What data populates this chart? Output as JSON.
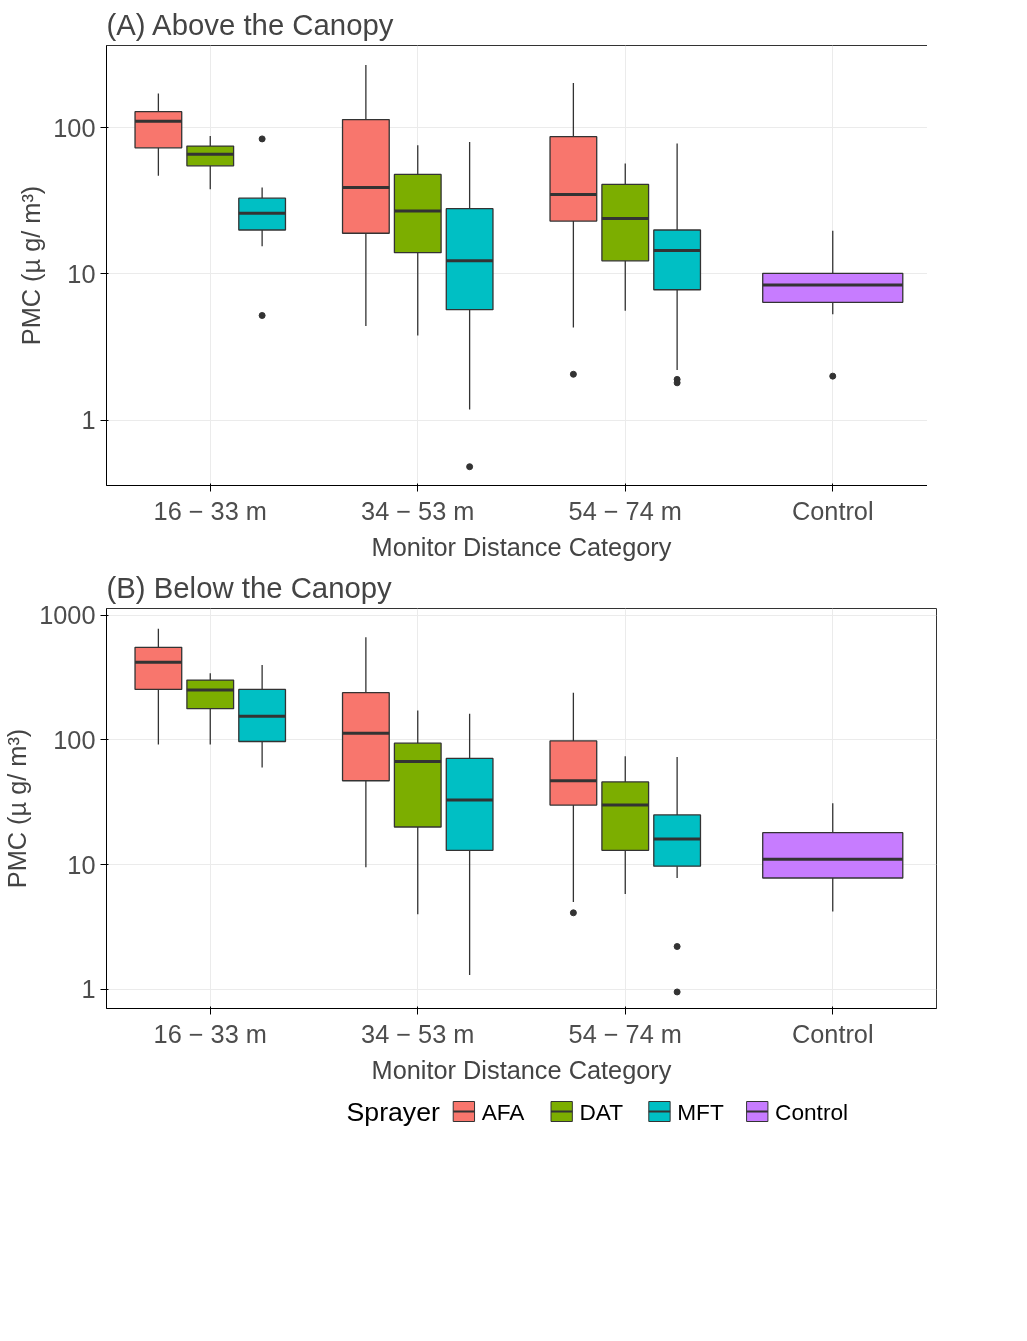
{
  "chart_data": [
    {
      "type": "box",
      "title": "(A) Above the Canopy",
      "xlabel": "Monitor Distance Category",
      "ylabel": "PMC (µ g/ m³)",
      "categories": [
        "16 − 33 m",
        "34 − 53 m",
        "54 − 74 m",
        "Control"
      ],
      "log": true,
      "ylim": [
        0.357,
        366
      ],
      "yticks": [
        1,
        10,
        100
      ],
      "grid": true,
      "series": [
        {
          "color": "#f8766d",
          "boxes": [
            {
              "low": 47,
              "q1": 73,
              "median": 111,
              "q3": 129,
              "high": 172
            },
            {
              "low": 4.4,
              "q1": 19,
              "median": 39,
              "q3": 114,
              "high": 269
            },
            {
              "low": 4.3,
              "q1": 23,
              "median": 35,
              "q3": 87,
              "high": 203,
              "outliers": [
                2.06
              ]
            },
            null
          ]
        },
        {
          "color": "#7cae00",
          "boxes": [
            {
              "low": 38,
              "q1": 55,
              "median": 66,
              "q3": 75,
              "high": 88
            },
            {
              "low": 3.8,
              "q1": 14,
              "median": 27,
              "q3": 48,
              "high": 76
            },
            {
              "low": 5.6,
              "q1": 12.3,
              "median": 24,
              "q3": 41,
              "high": 57
            },
            null
          ]
        },
        {
          "color": "#00bfc4",
          "boxes": [
            {
              "low": 15.5,
              "q1": 20,
              "median": 26,
              "q3": 33,
              "high": 39,
              "outliers": [
                84,
                5.2
              ]
            },
            {
              "low": 1.18,
              "q1": 5.7,
              "median": 12.3,
              "q3": 28,
              "high": 80,
              "outliers": [
                0.48
              ]
            },
            {
              "low": 2.2,
              "q1": 7.8,
              "median": 14.5,
              "q3": 20,
              "high": 78,
              "outliers": [
                1.9,
                1.8
              ]
            },
            null
          ]
        },
        {
          "color": "#c77cff",
          "boxes": [
            null,
            null,
            null,
            {
              "low": 5.3,
              "q1": 6.4,
              "median": 8.4,
              "q3": 10.1,
              "high": 19.8,
              "outliers": [
                2.0
              ]
            }
          ]
        }
      ]
    },
    {
      "type": "box",
      "title": "(B) Below the Canopy",
      "xlabel": "Monitor Distance Category",
      "ylabel": "PMC (µ g/ m³)",
      "categories": [
        "16 − 33 m",
        "34 − 53 m",
        "54 − 74 m",
        "Control"
      ],
      "log": true,
      "ylim": [
        0.7,
        1132
      ],
      "yticks": [
        1,
        10,
        100,
        1000
      ],
      "grid": true,
      "legend": "bottom",
      "legend_title": "Sprayer",
      "series": [
        {
          "name": "AFA",
          "color": "#f8766d",
          "boxes": [
            {
              "low": 92,
              "q1": 254,
              "median": 419,
              "q3": 553,
              "high": 780
            },
            {
              "low": 9.5,
              "q1": 47,
              "median": 113,
              "q3": 239,
              "high": 667
            },
            {
              "low": 5.0,
              "q1": 30,
              "median": 47,
              "q3": 98,
              "high": 239,
              "outliers": [
                4.1
              ]
            },
            null
          ]
        },
        {
          "name": "DAT",
          "color": "#7cae00",
          "boxes": [
            {
              "low": 92,
              "q1": 178,
              "median": 251,
              "q3": 302,
              "high": 342
            },
            {
              "low": 4.0,
              "q1": 20,
              "median": 67,
              "q3": 94,
              "high": 172
            },
            {
              "low": 5.8,
              "q1": 13,
              "median": 30,
              "q3": 46,
              "high": 74
            },
            null
          ]
        },
        {
          "name": "MFT",
          "color": "#00bfc4",
          "boxes": [
            {
              "low": 60,
              "q1": 97,
              "median": 155,
              "q3": 254,
              "high": 399
            },
            {
              "low": 1.3,
              "q1": 13,
              "median": 33,
              "q3": 71,
              "high": 162
            },
            {
              "low": 7.8,
              "q1": 9.7,
              "median": 16,
              "q3": 25,
              "high": 73,
              "outliers": [
                2.2,
                0.95
              ]
            },
            null
          ]
        },
        {
          "name": "Control",
          "color": "#c77cff",
          "boxes": [
            null,
            null,
            null,
            {
              "low": 4.2,
              "q1": 7.8,
              "median": 11,
              "q3": 18,
              "high": 31
            }
          ]
        }
      ]
    }
  ]
}
